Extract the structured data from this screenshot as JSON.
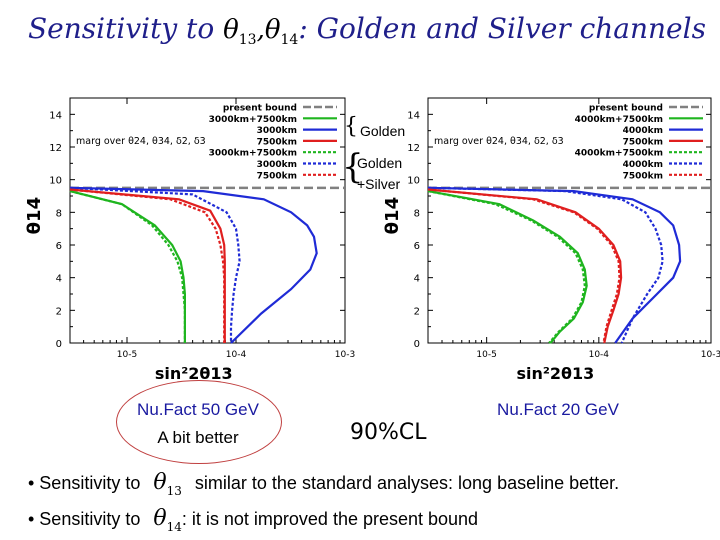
{
  "slide": {
    "title_prefix": "Sensitivity to",
    "title_sym1": "θ",
    "title_sub1": "13",
    "title_sep": ",",
    "title_sym2": "θ",
    "title_sub2": "14",
    "title_suffix": ": Golden and Silver channels",
    "brace_golden": "Golden",
    "brace_golden_silver_1": "Golden",
    "brace_golden_silver_2": "+Silver",
    "caption_left_1": "Nu.Fact 50 GeV",
    "caption_left_2": "A bit better",
    "caption_cl": "90%CL",
    "caption_right": "Nu.Fact 20 GeV",
    "bullet1_prefix": "• Sensitivity to",
    "bullet1_sym": "θ",
    "bullet1_sub": "13",
    "bullet1_text": "similar to the standard analyses: long baseline better.",
    "bullet2_prefix": "• Sensitivity to",
    "bullet2_sym": "θ",
    "bullet2_sub": "14",
    "bullet2_text": ": it is not improved the present bound"
  },
  "chart_data": [
    {
      "type": "line",
      "xlabel": "sin²2θ13",
      "ylabel": "θ14",
      "xscale": "log",
      "xlim": [
        3e-06,
        0.001
      ],
      "ylim": [
        0,
        15
      ],
      "xticks": [
        "10-5",
        "10-4",
        "10-3"
      ],
      "yticks": [
        "0",
        "2",
        "4",
        "6",
        "8",
        "10",
        "12",
        "14"
      ],
      "legend_placement": "top-right",
      "legend_note": "marg over θ24, θ34, δ2, δ3",
      "present_bound": {
        "name": "present bound",
        "y": 9.5,
        "color": "#808080"
      },
      "series": [
        {
          "name": "3000km+7500km",
          "color": "#1fb51f",
          "dash": false,
          "x": [
            3e-06,
            9e-06,
            1.8e-05,
            2.6e-05,
            3.1e-05,
            3.3e-05,
            3.4e-05,
            3.4e-05,
            3.4e-05,
            3.4e-05,
            3.4e-05
          ],
          "y": [
            9.3,
            8.5,
            7.2,
            6.0,
            5.0,
            4.0,
            3.0,
            2.0,
            1.0,
            0.5,
            0
          ]
        },
        {
          "name": "3000km",
          "color": "#1f2bd6",
          "dash": false,
          "x": [
            3e-06,
            5e-05,
            0.00018,
            0.00032,
            0.00045,
            0.00052,
            0.00055,
            0.00048,
            0.00032,
            0.00017,
            9e-05
          ],
          "y": [
            9.5,
            9.3,
            8.8,
            8.0,
            7.2,
            6.5,
            5.5,
            4.5,
            3.3,
            1.8,
            0
          ]
        },
        {
          "name": "7500km",
          "color": "#e01f1f",
          "dash": false,
          "x": [
            3e-06,
            3e-05,
            5.8e-05,
            7.2e-05,
            7.8e-05,
            7.9e-05,
            7.9e-05,
            7.9e-05,
            7.9e-05,
            7.9e-05,
            7.9e-05
          ],
          "y": [
            9.4,
            8.8,
            8.1,
            7.0,
            6.0,
            5.0,
            4.0,
            3.0,
            2.0,
            1.0,
            0
          ]
        },
        {
          "name": "3000km+7500km",
          "color": "#1fb51f",
          "dash": true,
          "x": [
            3e-06,
            9e-06,
            1.7e-05,
            2.4e-05,
            2.9e-05,
            3.2e-05,
            3.3e-05,
            3.4e-05,
            3.4e-05,
            3.4e-05,
            3.4e-05
          ],
          "y": [
            9.3,
            8.5,
            7.2,
            6.0,
            5.0,
            4.0,
            3.0,
            2.0,
            1.0,
            0.5,
            0
          ]
        },
        {
          "name": "3000km",
          "color": "#1f2bd6",
          "dash": true,
          "x": [
            3e-06,
            4e-05,
            8.2e-05,
            0.0001,
            0.000105,
            0.000108,
            0.0001,
            9.5e-05,
            9.2e-05,
            9e-05,
            9e-05
          ],
          "y": [
            9.5,
            9.1,
            8.0,
            7.0,
            6.0,
            5.0,
            4.0,
            3.0,
            2.0,
            1.0,
            0
          ]
        },
        {
          "name": "7500km",
          "color": "#e01f1f",
          "dash": true,
          "x": [
            3e-06,
            2.5e-05,
            5.2e-05,
            6.5e-05,
            7.2e-05,
            7.6e-05,
            7.8e-05,
            7.8e-05,
            7.8e-05,
            7.8e-05,
            7.8e-05
          ],
          "y": [
            9.4,
            8.8,
            8.0,
            7.0,
            6.0,
            5.0,
            4.0,
            3.0,
            2.0,
            1.0,
            0
          ]
        }
      ]
    },
    {
      "type": "line",
      "xlabel": "sin²2θ13",
      "ylabel": "θ14",
      "xscale": "log",
      "xlim": [
        3e-06,
        0.001
      ],
      "ylim": [
        0,
        15
      ],
      "xticks": [
        "10-5",
        "10-4",
        "10-3"
      ],
      "yticks": [
        "0",
        "2",
        "4",
        "6",
        "8",
        "10",
        "12",
        "14"
      ],
      "legend_placement": "top-right",
      "legend_note": "marg over θ24, θ34, δ2, δ3",
      "present_bound": {
        "name": "present bound",
        "y": 9.5,
        "color": "#808080"
      },
      "series": [
        {
          "name": "4000km+7500km",
          "color": "#1fb51f",
          "dash": false,
          "x": [
            3e-06,
            1.3e-05,
            2.6e-05,
            4.5e-05,
            6.5e-05,
            7.5e-05,
            7.8e-05,
            7.2e-05,
            6e-05,
            4.5e-05,
            3.7e-05
          ],
          "y": [
            9.3,
            8.5,
            7.5,
            6.5,
            5.5,
            4.5,
            3.5,
            2.5,
            1.5,
            0.7,
            0
          ]
        },
        {
          "name": "4000km",
          "color": "#1f2bd6",
          "dash": false,
          "x": [
            3e-06,
            6e-05,
            0.0002,
            0.00035,
            0.00046,
            0.00052,
            0.00053,
            0.00046,
            0.00033,
            0.0002,
            0.00014
          ],
          "y": [
            9.5,
            9.3,
            8.8,
            8.0,
            7.2,
            6.0,
            5.0,
            4.0,
            3.0,
            1.5,
            0
          ]
        },
        {
          "name": "7500km",
          "color": "#e01f1f",
          "dash": false,
          "x": [
            3e-06,
            2.8e-05,
            6.2e-05,
            0.0001,
            0.000135,
            0.000155,
            0.000158,
            0.00015,
            0.000135,
            0.00012,
            0.000112
          ],
          "y": [
            9.4,
            8.8,
            8.0,
            7.0,
            6.0,
            5.0,
            4.0,
            3.0,
            2.0,
            1.0,
            0
          ]
        },
        {
          "name": "4000km+7500km",
          "color": "#1fb51f",
          "dash": true,
          "x": [
            3e-06,
            1.2e-05,
            2.5e-05,
            4.3e-05,
            6.2e-05,
            7.2e-05,
            7.5e-05,
            7e-05,
            5.8e-05,
            4.4e-05,
            3.6e-05
          ],
          "y": [
            9.3,
            8.5,
            7.5,
            6.5,
            5.5,
            4.5,
            3.5,
            2.5,
            1.5,
            0.7,
            0
          ]
        },
        {
          "name": "4000km",
          "color": "#1f2bd6",
          "dash": true,
          "x": [
            3e-06,
            5e-05,
            0.00016,
            0.00026,
            0.00032,
            0.00036,
            0.00037,
            0.00034,
            0.00027,
            0.0002,
            0.00016
          ],
          "y": [
            9.5,
            9.3,
            8.8,
            8.0,
            7.0,
            6.0,
            5.0,
            4.0,
            3.0,
            1.5,
            0
          ]
        },
        {
          "name": "7500km",
          "color": "#e01f1f",
          "dash": true,
          "x": [
            3e-06,
            2.6e-05,
            6e-05,
            9.7e-05,
            0.00013,
            0.00015,
            0.000153,
            0.000145,
            0.00013,
            0.000117,
            0.00011
          ],
          "y": [
            9.4,
            8.8,
            8.0,
            7.0,
            6.0,
            5.0,
            4.0,
            3.0,
            2.0,
            1.0,
            0
          ]
        }
      ]
    }
  ]
}
